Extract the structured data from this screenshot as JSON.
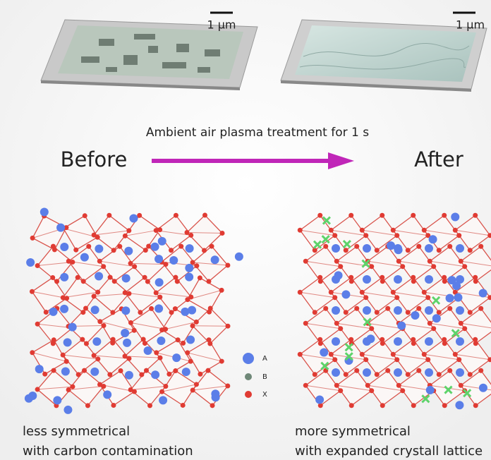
{
  "scale_bars": [
    "1 μm",
    "1 μm"
  ],
  "process": {
    "label": "Ambient air plasma treatment for 1 s",
    "before": "Before",
    "after": "After"
  },
  "legend": [
    "A",
    "B",
    "X"
  ],
  "captions": {
    "before": [
      "less symmetrical",
      "with carbon contamination"
    ],
    "after": [
      "more symmetrical",
      "with expanded crystall lattice"
    ]
  }
}
